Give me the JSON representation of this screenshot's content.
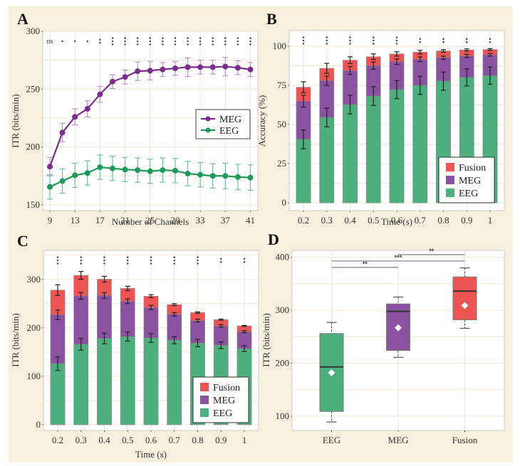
{
  "colors": {
    "background": "#f8f0df",
    "plot_bg": "#ffffff",
    "grid": "#f1ead8",
    "meg": "#7b2d8e",
    "meg_err": "#c38fd0",
    "eeg": "#1f9a5a",
    "eeg_err": "#6cc294",
    "fusion_bar": "#ef5455",
    "meg_bar": "#8a52a0",
    "eeg_bar": "#4caf7d"
  },
  "chart_data": [
    {
      "panel": "A",
      "type": "line",
      "xlabel": "Number of Channels",
      "ylabel": "ITR (bits/min)",
      "ylim": [
        145,
        300
      ],
      "yticks": [
        150,
        200,
        250,
        300
      ],
      "xticks": [
        9,
        13,
        17,
        21,
        25,
        29,
        33,
        37,
        41
      ],
      "x": [
        9,
        11,
        13,
        15,
        17,
        19,
        21,
        23,
        25,
        27,
        29,
        31,
        33,
        35,
        37,
        39,
        41
      ],
      "series": [
        {
          "name": "MEG",
          "values": [
            183,
            212.5,
            226,
            233,
            245.5,
            256.5,
            260.5,
            265.5,
            266,
            267,
            268,
            269,
            269,
            269,
            269.5,
            268.5,
            267
          ],
          "errors": [
            8,
            8,
            7,
            7,
            7,
            6,
            6,
            8,
            8,
            6,
            6,
            8,
            6,
            6,
            8,
            6,
            6
          ]
        },
        {
          "name": "EEG",
          "values": [
            165.5,
            170.5,
            175.5,
            177.5,
            182.5,
            181.5,
            180.5,
            180,
            179,
            180,
            179.5,
            177,
            176,
            175,
            175,
            174,
            173.5
          ],
          "errors": [
            10.5,
            10.5,
            10.5,
            10.5,
            10.5,
            10.5,
            10.5,
            10.5,
            10.5,
            10.5,
            10.5,
            10.5,
            10.5,
            10.5,
            11,
            11,
            11
          ]
        }
      ],
      "significance": [
        "ns",
        "*",
        "*",
        "*",
        "**",
        "***",
        "***",
        "***",
        "***",
        "***",
        "***",
        "***",
        "***",
        "***",
        "***",
        "***",
        "***"
      ],
      "legend": [
        "MEG",
        "EEG"
      ],
      "legend_position": "center-right",
      "grid": true
    },
    {
      "panel": "B",
      "type": "bar",
      "stacked_overlay": true,
      "xlabel": "Time (s)",
      "ylabel": "Accuracy (%)",
      "ylim": [
        -5,
        110
      ],
      "yticks": [
        0,
        25,
        50,
        75,
        100
      ],
      "categories": [
        "0.2",
        "0.3",
        "0.4",
        "0.5",
        "0.6",
        "0.7",
        "0.8",
        "0.9",
        "1"
      ],
      "series": [
        {
          "name": "Fusion",
          "values": [
            73.8,
            85.9,
            91.1,
            93.3,
            95.1,
            96.2,
            97.0,
            97.6,
            97.9
          ],
          "errors": [
            3.5,
            3.2,
            2.2,
            1.8,
            1.4,
            1.2,
            0.8,
            0.7,
            0.6
          ]
        },
        {
          "name": "MEG",
          "values": [
            64.9,
            78.0,
            84.5,
            87.6,
            90.1,
            91.7,
            92.7,
            93.8,
            94.5
          ],
          "errors": [
            3.8,
            3.0,
            2.5,
            2.3,
            1.8,
            1.5,
            1.0,
            1.0,
            0.8
          ]
        },
        {
          "name": "EEG",
          "values": [
            40.5,
            54.5,
            62.7,
            68.2,
            72.3,
            75.0,
            77.7,
            80.1,
            81.2
          ],
          "errors": [
            6,
            6,
            6,
            6,
            5.8,
            5.8,
            5.8,
            5.5,
            5.5
          ]
        }
      ],
      "significance": [
        "***",
        "***",
        "***",
        "***",
        "***",
        "**",
        "**",
        "**",
        "**"
      ],
      "legend": [
        "Fusion",
        "MEG",
        "EEG"
      ],
      "legend_position": "bottom-right",
      "grid": true
    },
    {
      "panel": "C",
      "type": "bar",
      "stacked_overlay": true,
      "xlabel": "Time (s)",
      "ylabel": "ITR (bits/min)",
      "ylim": [
        -12,
        360
      ],
      "yticks": [
        0,
        100,
        200,
        300
      ],
      "categories": [
        "0.2",
        "0.3",
        "0.4",
        "0.5",
        "0.6",
        "0.7",
        "0.8",
        "0.9",
        "1"
      ],
      "series": [
        {
          "name": "Fusion",
          "values": [
            278,
            308.5,
            300.5,
            281.5,
            265.5,
            248,
            231.5,
            217,
            204
          ],
          "errors": [
            11,
            8,
            6,
            4.5,
            3,
            2,
            1.5,
            1.2,
            1
          ]
        },
        {
          "name": "MEG",
          "values": [
            227,
            266,
            267,
            255,
            242,
            228,
            215,
            204,
            192
          ],
          "errors": [
            10,
            7,
            6,
            5,
            4.5,
            3.5,
            3,
            2.5,
            2
          ]
        },
        {
          "name": "EEG",
          "values": [
            126,
            166,
            178,
            182,
            179,
            174.5,
            168.5,
            164,
            157
          ],
          "errors": [
            14,
            12,
            11,
            9.5,
            9,
            7.5,
            7.5,
            7,
            6
          ]
        }
      ],
      "significance": [
        "***",
        "***",
        "***",
        "***",
        "***",
        "***",
        "***",
        "**",
        "**"
      ],
      "legend": [
        "Fusion",
        "MEG",
        "EEG"
      ],
      "legend_position": "bottom-right",
      "grid": true
    },
    {
      "panel": "D",
      "type": "box",
      "xlabel": "",
      "ylabel": "ITR (bits/min)",
      "ylim": [
        73,
        413
      ],
      "yticks": [
        100,
        200,
        300,
        400
      ],
      "categories": [
        "EEG",
        "MEG",
        "Fusion"
      ],
      "boxes": [
        {
          "name": "EEG",
          "whisker_low": 89,
          "q1": 109,
          "median": 193,
          "q3": 256,
          "whisker_high": 277,
          "mean": 182
        },
        {
          "name": "MEG",
          "whisker_low": 211,
          "q1": 224,
          "median": 298,
          "q3": 312,
          "whisker_high": 325,
          "mean": 267
        },
        {
          "name": "Fusion",
          "whisker_low": 266,
          "q1": 282,
          "median": 336,
          "q3": 363,
          "whisker_high": 380,
          "mean": 309
        }
      ],
      "comparisons": [
        {
          "from": "EEG",
          "to": "MEG",
          "label": "**",
          "y": 381
        },
        {
          "from": "EEG",
          "to": "Fusion",
          "label": "***",
          "y": 393
        },
        {
          "from": "MEG",
          "to": "Fusion",
          "label": "**",
          "y": 405
        }
      ],
      "grid": true
    }
  ]
}
